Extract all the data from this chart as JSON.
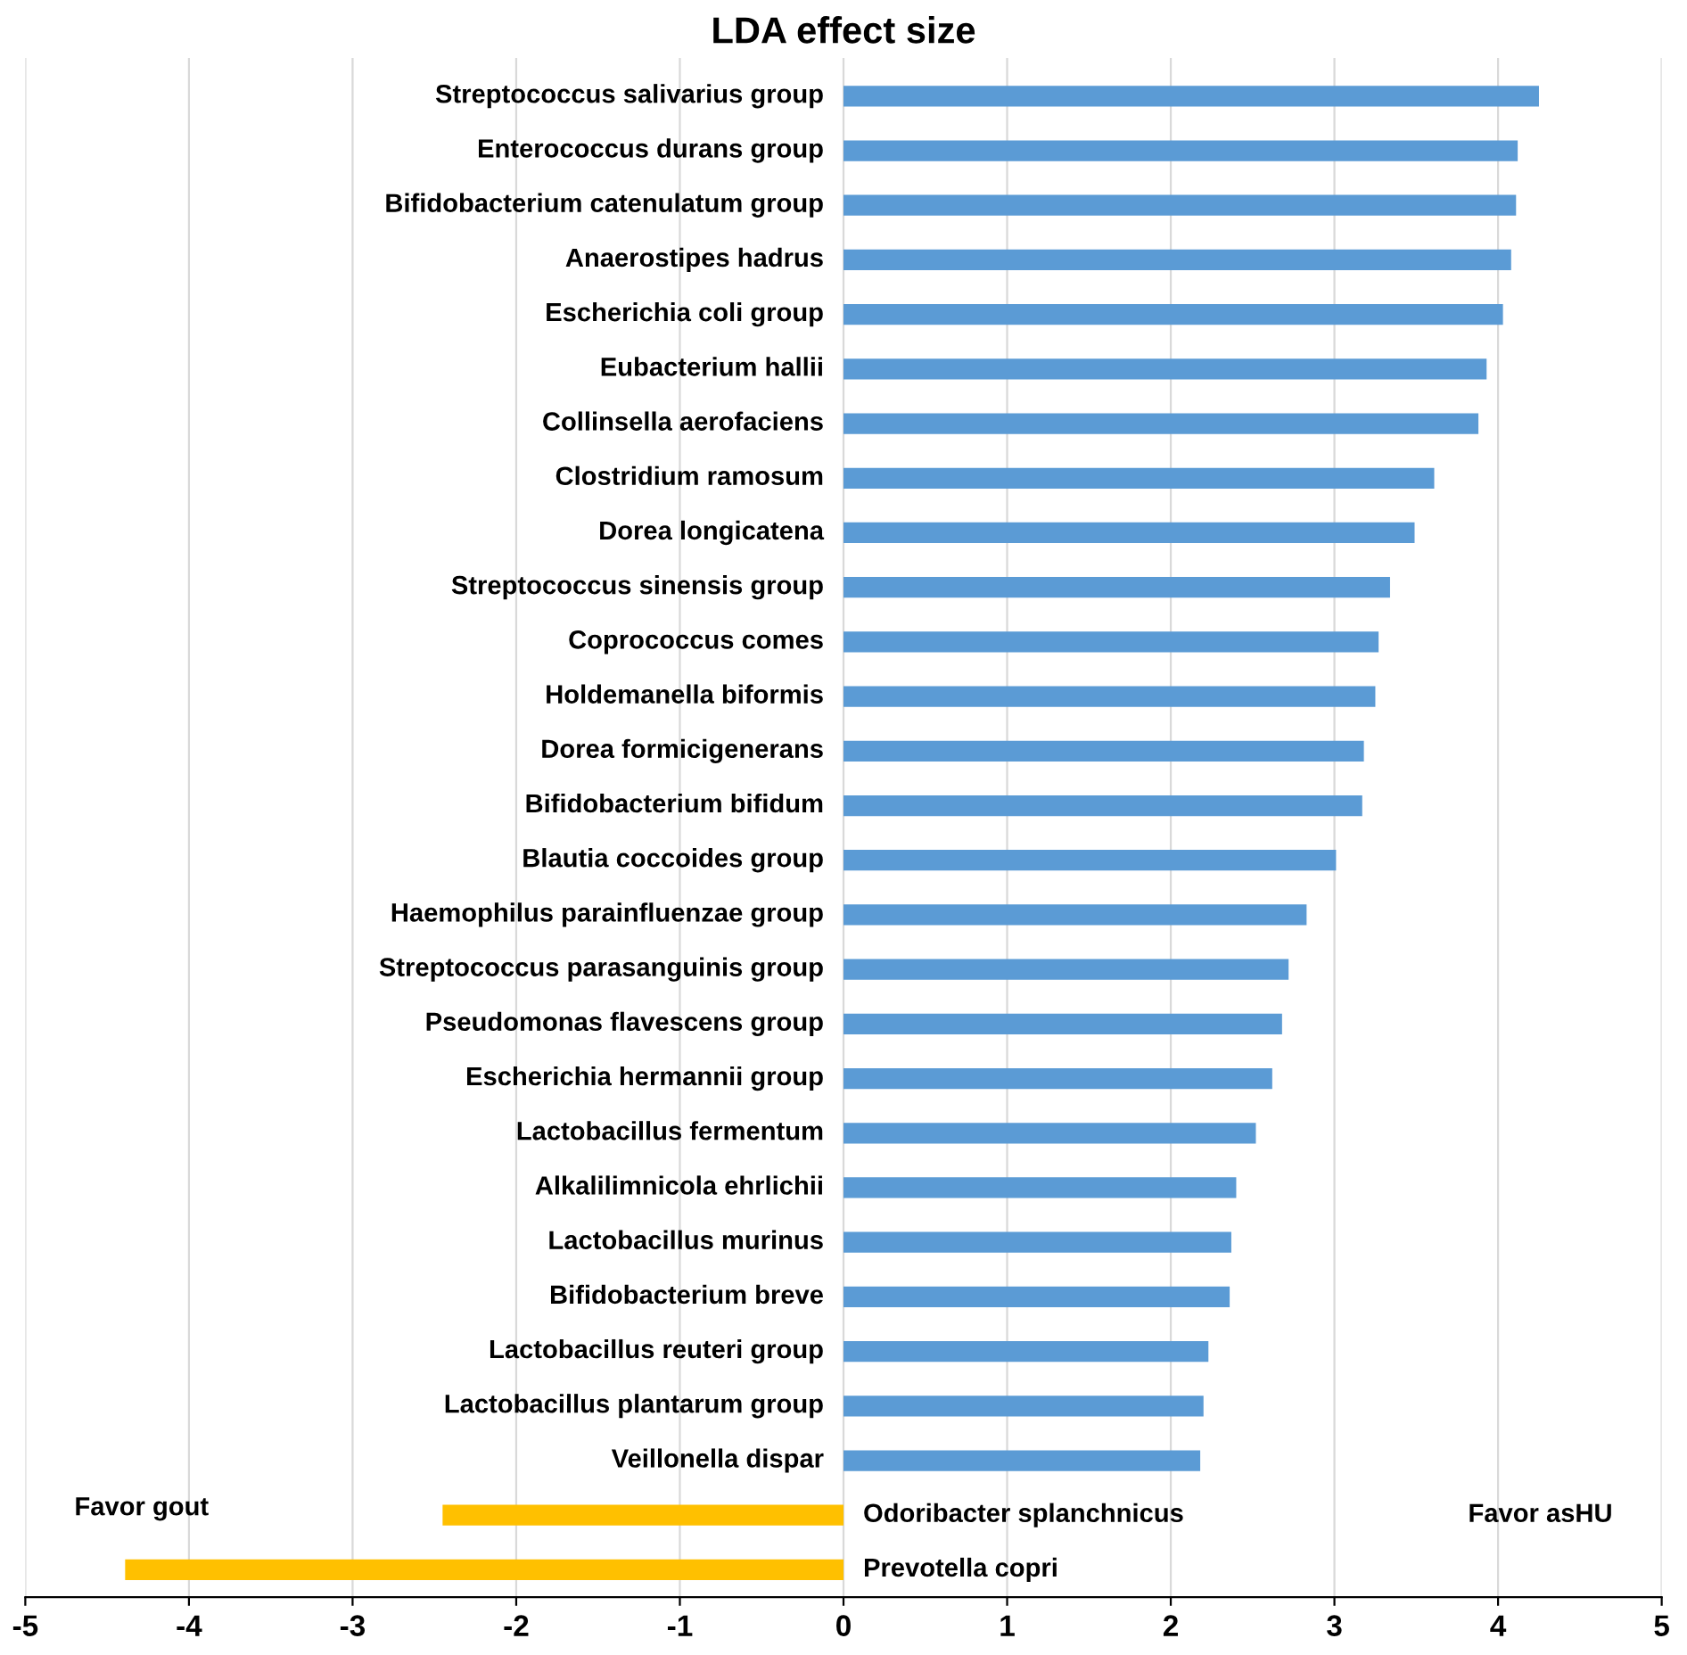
{
  "chart_data": {
    "type": "bar",
    "orientation": "horizontal",
    "title": "LDA effect size",
    "categories": [
      "Streptococcus salivarius group",
      "Enterococcus durans group",
      "Bifidobacterium catenulatum group",
      "Anaerostipes hadrus",
      "Escherichia coli group",
      "Eubacterium hallii",
      "Collinsella aerofaciens",
      "Clostridium ramosum",
      "Dorea longicatena",
      "Streptococcus sinensis group",
      "Coprococcus comes",
      "Holdemanella biformis",
      "Dorea formicigenerans",
      "Bifidobacterium bifidum",
      "Blautia coccoides group",
      "Haemophilus parainfluenzae group",
      "Streptococcus parasanguinis group",
      "Pseudomonas flavescens group",
      "Escherichia hermannii group",
      "Lactobacillus fermentum",
      "Alkalilimnicola ehrlichii",
      "Lactobacillus murinus",
      "Bifidobacterium breve",
      "Lactobacillus reuteri group",
      "Lactobacillus plantarum group",
      "Veillonella dispar",
      "Odoribacter splanchnicus",
      "Prevotella copri"
    ],
    "values": [
      4.25,
      4.12,
      4.11,
      4.08,
      4.03,
      3.93,
      3.88,
      3.61,
      3.49,
      3.34,
      3.27,
      3.25,
      3.18,
      3.17,
      3.01,
      2.83,
      2.72,
      2.68,
      2.62,
      2.52,
      2.4,
      2.37,
      2.36,
      2.23,
      2.2,
      2.18,
      -2.45,
      -4.39
    ],
    "colors": [
      "#5b9bd5",
      "#5b9bd5",
      "#5b9bd5",
      "#5b9bd5",
      "#5b9bd5",
      "#5b9bd5",
      "#5b9bd5",
      "#5b9bd5",
      "#5b9bd5",
      "#5b9bd5",
      "#5b9bd5",
      "#5b9bd5",
      "#5b9bd5",
      "#5b9bd5",
      "#5b9bd5",
      "#5b9bd5",
      "#5b9bd5",
      "#5b9bd5",
      "#5b9bd5",
      "#5b9bd5",
      "#5b9bd5",
      "#5b9bd5",
      "#5b9bd5",
      "#5b9bd5",
      "#5b9bd5",
      "#5b9bd5",
      "#ffc000",
      "#ffc000"
    ],
    "xlim": [
      -5,
      5
    ],
    "xticks": [
      -5,
      -4,
      -3,
      -2,
      -1,
      0,
      1,
      2,
      3,
      4,
      5
    ],
    "grid": "x",
    "annotations": [
      "Favor gout",
      "Favor asHU"
    ]
  }
}
